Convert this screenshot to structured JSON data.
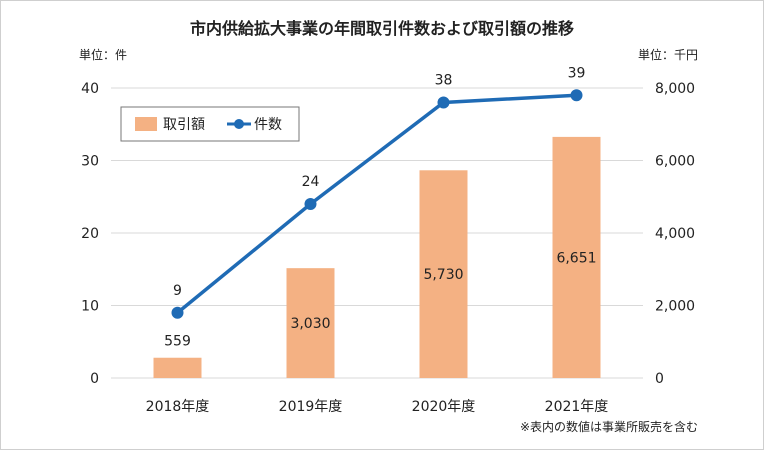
{
  "chart_data": {
    "type": "bar",
    "title": "市内供給拡大事業の年間取引件数および取引額の推移",
    "categories": [
      "2018年度",
      "2019年度",
      "2020年度",
      "2021年度"
    ],
    "series": [
      {
        "name": "取引額",
        "type": "bar",
        "axis": "right",
        "color": "#f4b183",
        "values": [
          559,
          3030,
          5730,
          6651
        ],
        "labels": [
          "559",
          "3,030",
          "5,730",
          "6,651"
        ]
      },
      {
        "name": "件数",
        "type": "line",
        "axis": "left",
        "color": "#1f6bb5",
        "values": [
          9,
          24,
          38,
          39
        ],
        "labels": [
          "9",
          "24",
          "38",
          "39"
        ]
      }
    ],
    "left_axis": {
      "unit_label": "単位：件",
      "ylim": [
        0,
        40
      ],
      "ticks": [
        0,
        10,
        20,
        30,
        40
      ],
      "tick_labels": [
        "0",
        "10",
        "20",
        "30",
        "40"
      ]
    },
    "right_axis": {
      "unit_label": "単位：千円",
      "ylim": [
        0,
        8000
      ],
      "ticks": [
        0,
        2000,
        4000,
        6000,
        8000
      ],
      "tick_labels": [
        "0",
        "2,000",
        "4,000",
        "6,000",
        "8,000"
      ]
    },
    "grid": true,
    "legend": {
      "position": "top-left"
    },
    "note": "※表内の数値は事業所販売を含む"
  }
}
